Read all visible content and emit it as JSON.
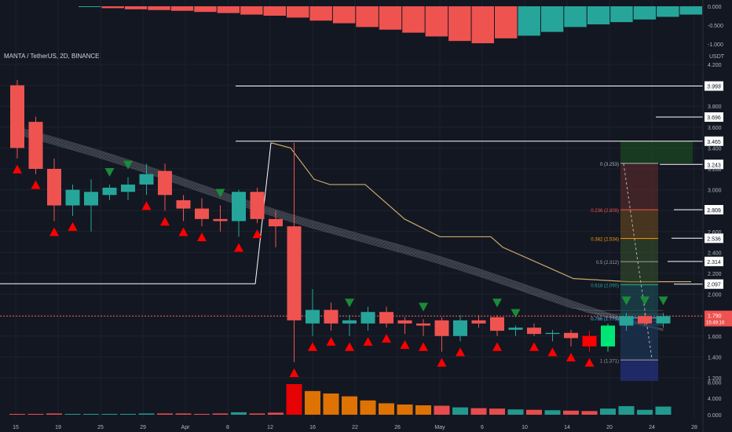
{
  "header": {
    "symbol_line": "MANTA / TetherUS, 2D, BINANCE",
    "currency": "USDT"
  },
  "osc_axis": [
    "0.000",
    "-0.500",
    "-1.000"
  ],
  "main_axis": [
    "4.200",
    "4.000",
    "3.800",
    "3.600",
    "3.400",
    "3.200",
    "3.000",
    "2.800",
    "2.600",
    "2.400",
    "2.200",
    "2.000",
    "1.800",
    "1.600",
    "1.400",
    "1.200"
  ],
  "vol_axis": [
    "8.000",
    "4.000",
    "0.000"
  ],
  "price_tags": [
    "3.993",
    "3.696",
    "3.465",
    "3.243",
    "2.809",
    "2.536",
    "2.314",
    "2.097"
  ],
  "last_price": {
    "price": "1.790",
    "countdown": "15:49:16"
  },
  "fib_labels": [
    "0 (3.253)",
    "0.236 (2.809)",
    "0.382 (2.534)",
    "0.5 (2.312)",
    "0.618 (2.090)",
    "0.786 (1.773)",
    "1 (1.371)"
  ],
  "x_labels": [
    "15",
    "19",
    "25",
    "29",
    "Apr",
    "8",
    "12",
    "16",
    "22",
    "26",
    "May",
    "6",
    "10",
    "14",
    "20",
    "24",
    "28"
  ],
  "colors": {
    "up": "#26a69a",
    "down": "#ef5350",
    "strong_down": "#ff0000",
    "strong_up": "#00e676",
    "bg": "#131722"
  },
  "chart_data": {
    "type": "candlestick",
    "title": "MANTA / TetherUS, 2D, BINANCE",
    "ylim": [
      1.1,
      4.3
    ],
    "candles": [
      {
        "o": 4.0,
        "h": 4.05,
        "l": 3.3,
        "c": 3.4
      },
      {
        "o": 3.65,
        "h": 3.7,
        "l": 3.15,
        "c": 3.2
      },
      {
        "o": 3.2,
        "h": 3.3,
        "l": 2.7,
        "c": 2.85
      },
      {
        "o": 2.85,
        "h": 3.05,
        "l": 2.75,
        "c": 3.0
      },
      {
        "o": 2.85,
        "h": 3.1,
        "l": 2.6,
        "c": 2.98
      },
      {
        "o": 2.95,
        "h": 3.05,
        "l": 2.9,
        "c": 3.02
      },
      {
        "o": 2.98,
        "h": 3.12,
        "l": 2.9,
        "c": 3.05
      },
      {
        "o": 3.05,
        "h": 3.25,
        "l": 2.95,
        "c": 3.15
      },
      {
        "o": 3.18,
        "h": 3.25,
        "l": 2.8,
        "c": 2.95
      },
      {
        "o": 2.9,
        "h": 2.95,
        "l": 2.7,
        "c": 2.82
      },
      {
        "o": 2.82,
        "h": 2.92,
        "l": 2.65,
        "c": 2.72
      },
      {
        "o": 2.72,
        "h": 2.85,
        "l": 2.6,
        "c": 2.7
      },
      {
        "o": 2.7,
        "h": 3.0,
        "l": 2.55,
        "c": 2.98
      },
      {
        "o": 2.98,
        "h": 3.02,
        "l": 2.68,
        "c": 2.72
      },
      {
        "o": 2.72,
        "h": 2.8,
        "l": 2.45,
        "c": 2.65
      },
      {
        "o": 2.65,
        "h": 3.45,
        "l": 1.35,
        "c": 1.75
      },
      {
        "o": 1.72,
        "h": 2.05,
        "l": 1.6,
        "c": 1.85
      },
      {
        "o": 1.85,
        "h": 1.92,
        "l": 1.65,
        "c": 1.72
      },
      {
        "o": 1.72,
        "h": 1.8,
        "l": 1.6,
        "c": 1.75
      },
      {
        "o": 1.72,
        "h": 1.88,
        "l": 1.65,
        "c": 1.83
      },
      {
        "o": 1.83,
        "h": 1.88,
        "l": 1.68,
        "c": 1.72
      },
      {
        "o": 1.75,
        "h": 1.78,
        "l": 1.62,
        "c": 1.72
      },
      {
        "o": 1.72,
        "h": 1.76,
        "l": 1.6,
        "c": 1.7
      },
      {
        "o": 1.75,
        "h": 1.78,
        "l": 1.45,
        "c": 1.6
      },
      {
        "o": 1.6,
        "h": 1.8,
        "l": 1.55,
        "c": 1.75
      },
      {
        "o": 1.75,
        "h": 1.8,
        "l": 1.68,
        "c": 1.72
      },
      {
        "o": 1.78,
        "h": 1.8,
        "l": 1.6,
        "c": 1.65
      },
      {
        "o": 1.66,
        "h": 1.7,
        "l": 1.6,
        "c": 1.68
      },
      {
        "o": 1.68,
        "h": 1.72,
        "l": 1.6,
        "c": 1.62
      },
      {
        "o": 1.62,
        "h": 1.66,
        "l": 1.55,
        "c": 1.63
      },
      {
        "o": 1.63,
        "h": 1.66,
        "l": 1.5,
        "c": 1.58
      },
      {
        "o": 1.6,
        "h": 1.65,
        "l": 1.45,
        "c": 1.5
      },
      {
        "o": 1.5,
        "h": 1.72,
        "l": 1.45,
        "c": 1.7
      },
      {
        "o": 1.7,
        "h": 1.82,
        "l": 1.65,
        "c": 1.79
      },
      {
        "o": 1.79,
        "h": 1.82,
        "l": 1.7,
        "c": 1.72
      },
      {
        "o": 1.72,
        "h": 1.82,
        "l": 1.68,
        "c": 1.79
      }
    ],
    "volume": [
      0.2,
      0.2,
      0.3,
      0.2,
      0.2,
      0.2,
      0.2,
      0.3,
      0.3,
      0.3,
      0.2,
      0.3,
      0.6,
      0.3,
      0.5,
      7.5,
      5.8,
      5.2,
      4.5,
      3.5,
      2.8,
      2.5,
      2.3,
      2.2,
      1.8,
      1.6,
      1.5,
      1.3,
      1.2,
      1.1,
      1.0,
      0.9,
      1.5,
      2.1,
      1.2,
      2.0
    ],
    "oscillator": [
      -0.02,
      -0.05,
      -0.08,
      -0.1,
      -0.12,
      -0.15,
      -0.18,
      -0.22,
      -0.25,
      -0.3,
      -0.38,
      -0.45,
      -0.55,
      -0.62,
      -0.7,
      -0.8,
      -0.92,
      -0.98,
      -0.85,
      -0.78,
      -0.68,
      -0.55,
      -0.48,
      -0.42,
      -0.35,
      -0.28,
      -0.22
    ]
  }
}
